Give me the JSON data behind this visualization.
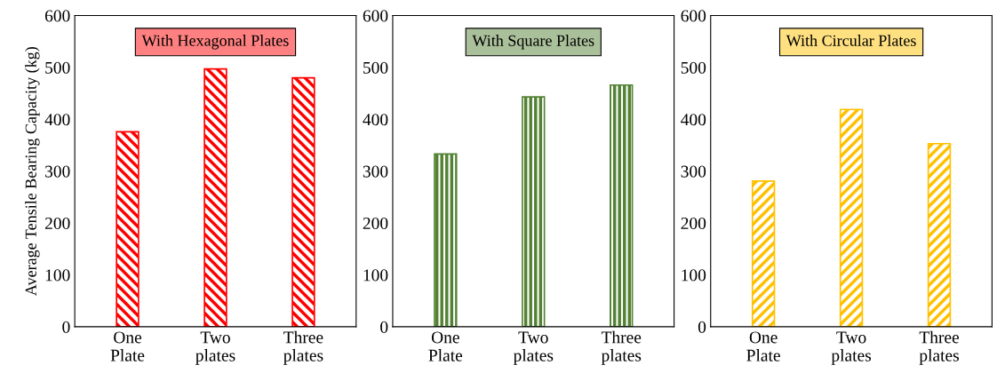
{
  "chart_data": [
    {
      "type": "bar",
      "title": "With Hexagonal Plates",
      "ylabel": "Average Tensile Bearing Capacity (kg)",
      "categories": [
        "One\nPlate",
        "Two\nplates",
        "Three\nplates"
      ],
      "values": [
        376,
        497,
        480
      ],
      "color": "#ff0000",
      "ylim": [
        0,
        600
      ],
      "yticks": [
        0,
        100,
        200,
        300,
        400,
        500,
        600
      ],
      "grid": false
    },
    {
      "type": "bar",
      "title": "With Square Plates",
      "categories": [
        "One\nPlate",
        "Two\nplates",
        "Three\nplates"
      ],
      "values": [
        333,
        443,
        466
      ],
      "color": "#548235",
      "ylim": [
        0,
        600
      ],
      "yticks": [
        0,
        100,
        200,
        300,
        400,
        500,
        600
      ],
      "grid": false
    },
    {
      "type": "bar",
      "title": "With Circular Plates",
      "categories": [
        "One\nPlate",
        "Two\nplates",
        "Three\nplates"
      ],
      "values": [
        281,
        419,
        353
      ],
      "color": "#ffc000",
      "ylim": [
        0,
        600
      ],
      "yticks": [
        0,
        100,
        200,
        300,
        400,
        500,
        600
      ],
      "grid": false
    }
  ]
}
